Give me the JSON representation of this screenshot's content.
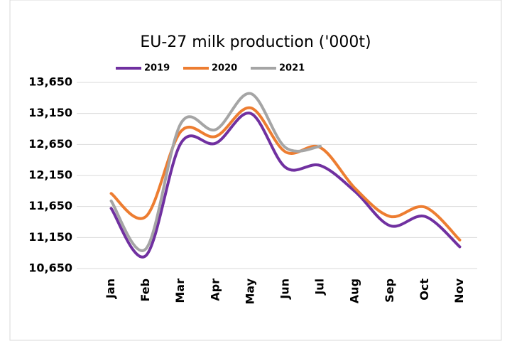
{
  "chart_data": {
    "type": "line",
    "title": "EU-27 milk production ('000t)",
    "categories": [
      "Jan",
      "Feb",
      "Mar",
      "Apr",
      "May",
      "Jun",
      "Jul",
      "Aug",
      "Sep",
      "Oct",
      "Nov"
    ],
    "series": [
      {
        "name": "2019",
        "color": "#7030a0",
        "values": [
          11620,
          10860,
          12670,
          12670,
          13150,
          12280,
          12310,
          11890,
          11340,
          11490,
          11000
        ]
      },
      {
        "name": "2020",
        "color": "#ed7d31",
        "values": [
          11860,
          11490,
          12860,
          12780,
          13240,
          12530,
          12600,
          11940,
          11490,
          11640,
          11110
        ]
      },
      {
        "name": "2021",
        "color": "#a5a5a5",
        "values": [
          11740,
          10970,
          12990,
          12890,
          13470,
          12600,
          12620,
          null,
          null,
          null,
          null
        ]
      }
    ],
    "ylim": [
      10650,
      13650
    ],
    "yticks": [
      {
        "value": 10650,
        "label": "10,650"
      },
      {
        "value": 11150,
        "label": "11,150"
      },
      {
        "value": 11650,
        "label": "11,650"
      },
      {
        "value": 12150,
        "label": "12,150"
      },
      {
        "value": 12650,
        "label": "12,650"
      },
      {
        "value": 13150,
        "label": "13,150"
      },
      {
        "value": 13650,
        "label": "13,650"
      }
    ],
    "grid": true,
    "legend": "top"
  }
}
